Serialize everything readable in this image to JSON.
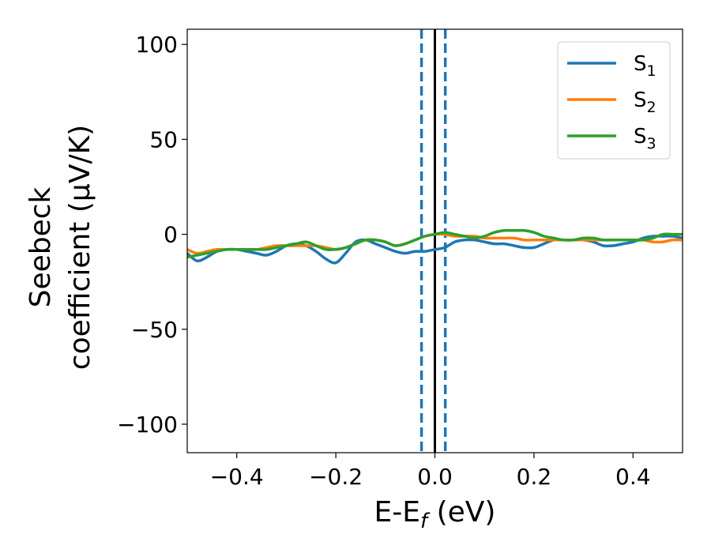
{
  "chart_data": {
    "type": "line",
    "xlabel": {
      "main": "E-E",
      "sub": "f",
      "tail": " (eV)"
    },
    "ylabel": {
      "line1": "Seebeck",
      "line2": "coefficient  (μV/K)"
    },
    "xlim": [
      -0.5,
      0.5
    ],
    "ylim": [
      -115,
      108
    ],
    "xticks": [
      -0.4,
      -0.2,
      0.0,
      0.2,
      0.4
    ],
    "xtick_labels": [
      "−0.4",
      "−0.2",
      "0.0",
      "0.2",
      "0.4"
    ],
    "yticks": [
      100,
      50,
      0,
      -50,
      -100
    ],
    "ytick_labels": [
      "100",
      "50",
      "0",
      "−50",
      "−100"
    ],
    "grid": false,
    "legend_position": "top-right",
    "vlines": [
      {
        "x": -0.027,
        "style": "dashed",
        "color": "#1f77b4"
      },
      {
        "x": 0.0,
        "style": "solid",
        "color": "#000000"
      },
      {
        "x": 0.021,
        "style": "dashed",
        "color": "#1f77b4"
      }
    ],
    "series": [
      {
        "name": {
          "base": "S",
          "sub": "1"
        },
        "color": "#1f77b4",
        "x": [
          -0.5,
          -0.48,
          -0.46,
          -0.44,
          -0.42,
          -0.4,
          -0.38,
          -0.36,
          -0.34,
          -0.32,
          -0.3,
          -0.28,
          -0.26,
          -0.24,
          -0.22,
          -0.2,
          -0.18,
          -0.16,
          -0.14,
          -0.12,
          -0.1,
          -0.08,
          -0.06,
          -0.04,
          -0.02,
          0.0,
          0.02,
          0.04,
          0.06,
          0.08,
          0.1,
          0.12,
          0.14,
          0.16,
          0.18,
          0.2,
          0.22,
          0.24,
          0.26,
          0.28,
          0.3,
          0.32,
          0.34,
          0.36,
          0.38,
          0.4,
          0.42,
          0.44,
          0.46,
          0.48,
          0.5
        ],
        "y": [
          -10,
          -14,
          -12,
          -9,
          -8,
          -8,
          -9,
          -10,
          -11,
          -9,
          -6,
          -5,
          -6,
          -9,
          -13,
          -15,
          -10,
          -4,
          -3,
          -5,
          -7,
          -9,
          -10,
          -9,
          -9,
          -8,
          -7,
          -4,
          -3,
          -3,
          -4,
          -5,
          -5,
          -6,
          -7,
          -7,
          -5,
          -3,
          -3,
          -3,
          -3,
          -4,
          -6,
          -6,
          -5,
          -4,
          -2,
          -1,
          -1,
          -1,
          -2
        ]
      },
      {
        "name": {
          "base": "S",
          "sub": "2"
        },
        "color": "#ff7f0e",
        "x": [
          -0.5,
          -0.48,
          -0.46,
          -0.44,
          -0.42,
          -0.4,
          -0.38,
          -0.36,
          -0.34,
          -0.32,
          -0.3,
          -0.28,
          -0.26,
          -0.24,
          -0.22,
          -0.2,
          -0.18,
          -0.16,
          -0.14,
          -0.12,
          -0.1,
          -0.08,
          -0.06,
          -0.04,
          -0.02,
          0.0,
          0.02,
          0.04,
          0.06,
          0.08,
          0.1,
          0.12,
          0.14,
          0.16,
          0.18,
          0.2,
          0.22,
          0.24,
          0.26,
          0.28,
          0.3,
          0.32,
          0.34,
          0.36,
          0.38,
          0.4,
          0.42,
          0.44,
          0.46,
          0.48,
          0.5
        ],
        "y": [
          -8,
          -10,
          -9,
          -8,
          -8,
          -8,
          -8,
          -8,
          -7,
          -6,
          -6,
          -6,
          -6,
          -6,
          -7,
          -8,
          -7,
          -5,
          -3,
          -3,
          -4,
          -6,
          -5,
          -3,
          -1,
          0,
          0,
          -1,
          -1,
          -1,
          -2,
          -2,
          -2,
          -2,
          -3,
          -3,
          -3,
          -3,
          -3,
          -3,
          -3,
          -3,
          -3,
          -3,
          -3,
          -3,
          -3,
          -4,
          -4,
          -3,
          -3
        ]
      },
      {
        "name": {
          "base": "S",
          "sub": "3"
        },
        "color": "#2ca02c",
        "x": [
          -0.5,
          -0.48,
          -0.46,
          -0.44,
          -0.42,
          -0.4,
          -0.38,
          -0.36,
          -0.34,
          -0.32,
          -0.3,
          -0.28,
          -0.26,
          -0.24,
          -0.22,
          -0.2,
          -0.18,
          -0.16,
          -0.14,
          -0.12,
          -0.1,
          -0.08,
          -0.06,
          -0.04,
          -0.02,
          0.0,
          0.02,
          0.04,
          0.06,
          0.08,
          0.1,
          0.12,
          0.14,
          0.16,
          0.18,
          0.2,
          0.22,
          0.24,
          0.26,
          0.28,
          0.3,
          0.32,
          0.34,
          0.36,
          0.38,
          0.4,
          0.42,
          0.44,
          0.46,
          0.48,
          0.5
        ],
        "y": [
          -12,
          -11,
          -10,
          -9,
          -8,
          -8,
          -8,
          -8,
          -8,
          -7,
          -6,
          -5,
          -4,
          -6,
          -8,
          -8,
          -7,
          -5,
          -3,
          -3,
          -4,
          -6,
          -5,
          -3,
          -1,
          0,
          1,
          0,
          -1,
          -2,
          -1,
          1,
          2,
          2,
          2,
          1,
          -1,
          -2,
          -3,
          -3,
          -2,
          -2,
          -3,
          -3,
          -3,
          -3,
          -3,
          -2,
          0,
          0,
          0
        ]
      }
    ]
  }
}
